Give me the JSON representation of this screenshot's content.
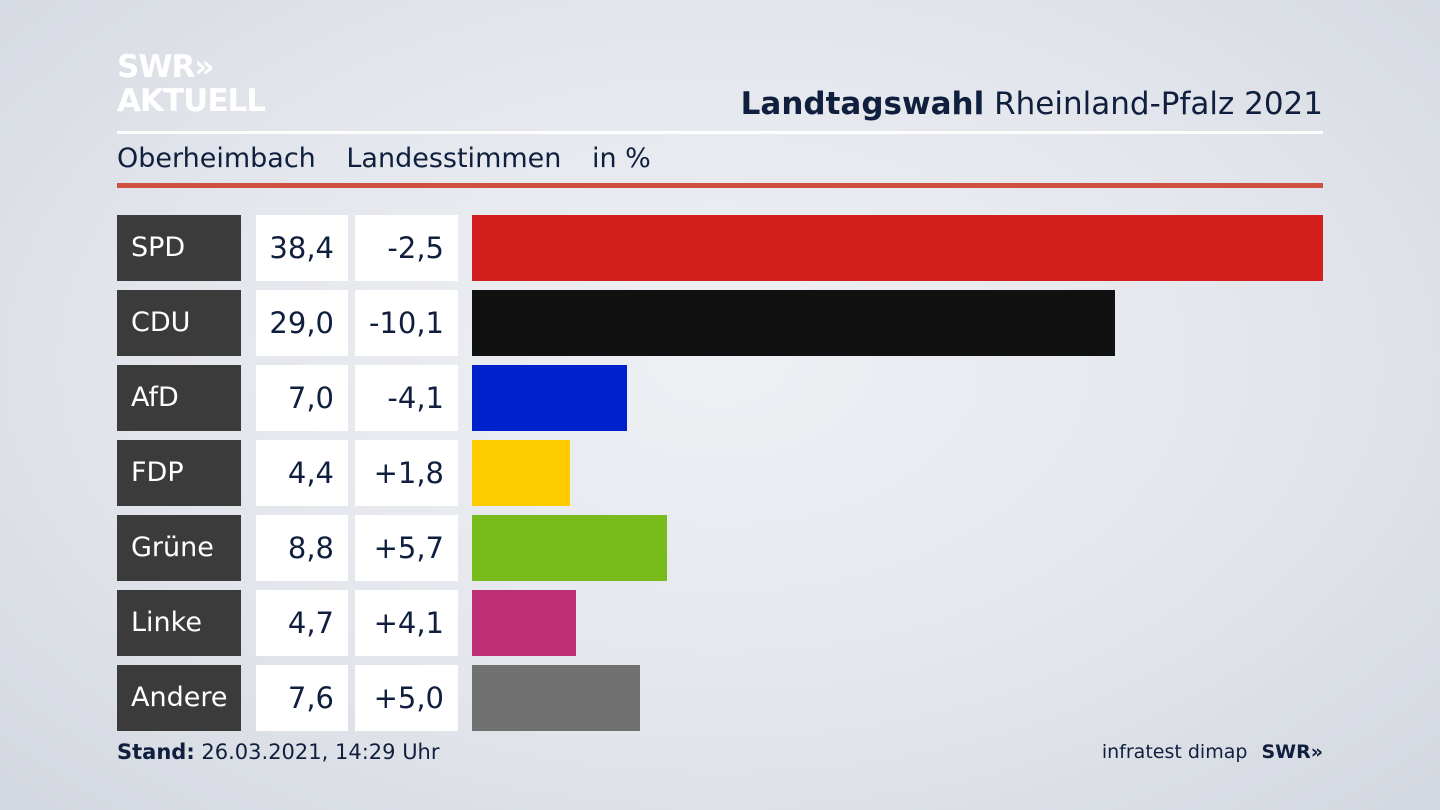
{
  "logo": {
    "line1": "SWR»",
    "line2": "AKTUELL"
  },
  "header": {
    "title_bold": "Landtagswahl",
    "title_rest": "Rheinland-Pfalz 2021"
  },
  "subtitle": {
    "place": "Oberheimbach",
    "measure": "Landesstimmen",
    "unit": "in %"
  },
  "chart_data": {
    "type": "bar",
    "orientation": "horizontal",
    "categories": [
      "SPD",
      "CDU",
      "AfD",
      "FDP",
      "Grüne",
      "Linke",
      "Andere"
    ],
    "values": [
      38.4,
      29.0,
      7.0,
      4.4,
      8.8,
      4.7,
      7.6
    ],
    "value_labels": [
      "38,4",
      "29,0",
      "7,0",
      "4,4",
      "8,8",
      "4,7",
      "7,6"
    ],
    "diff_labels": [
      "-2,5",
      "-10,1",
      "-4,1",
      "+1,8",
      "+5,7",
      "+4,1",
      "+5,0"
    ],
    "diffs": [
      -2.5,
      -10.1,
      -4.1,
      1.8,
      5.7,
      4.1,
      5.0
    ],
    "colors": [
      "#d41f1f",
      "#111111",
      "#0022cc",
      "#ffcc00",
      "#78bc1b",
      "#bd3075",
      "#717171"
    ],
    "xlim": [
      0,
      38.4
    ],
    "grid": false,
    "legend": "none"
  },
  "footer": {
    "stand_label": "Stand:",
    "stand_value": "26.03.2021, 14:29 Uhr",
    "source": "infratest dimap",
    "brand": "SWR»"
  }
}
